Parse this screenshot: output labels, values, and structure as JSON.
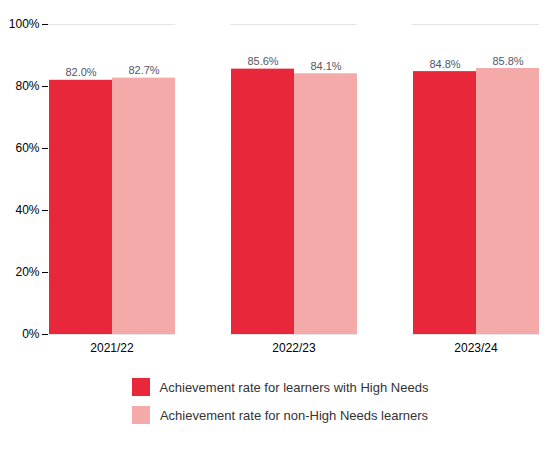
{
  "chart_data": {
    "type": "bar",
    "categories": [
      "2021/22",
      "2022/23",
      "2023/24"
    ],
    "series": [
      {
        "name": "Achievement rate for learners with High Needs",
        "color": "#E8273A",
        "values": [
          82.0,
          85.6,
          84.8
        ],
        "value_labels": [
          "82.0%",
          "85.6%",
          "84.8%"
        ]
      },
      {
        "name": "Achievement rate for non-High Needs learners",
        "color": "#F5AAAA",
        "values": [
          82.7,
          84.1,
          85.8
        ],
        "value_labels": [
          "82.7%",
          "84.1%",
          "85.8%"
        ]
      }
    ],
    "ylim": [
      0,
      100
    ],
    "yticks": [
      {
        "value": 0,
        "label": "0%"
      },
      {
        "value": 20,
        "label": "20%"
      },
      {
        "value": 40,
        "label": "40%"
      },
      {
        "value": 60,
        "label": "60%"
      },
      {
        "value": 80,
        "label": "80%"
      },
      {
        "value": 100,
        "label": "100%"
      }
    ],
    "grid": true,
    "data_labels": true,
    "legend": "bottom"
  }
}
